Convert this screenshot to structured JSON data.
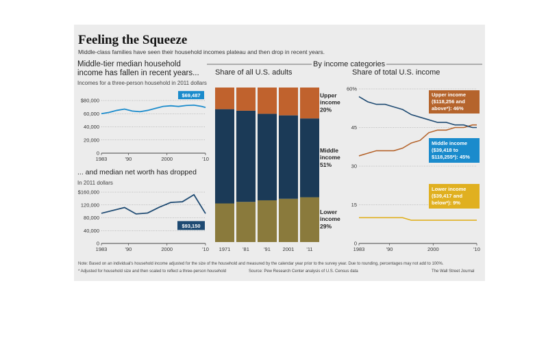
{
  "title": "Feeling the Squeeze",
  "subtitle": "Middle-class families have seen their household incomes plateau and then drop in recent years.",
  "section_label": "By income categories",
  "charts": {
    "income": {
      "heading": "Middle-tier median household income has fallen in recent years...",
      "note": "Incomes for a three-person household in 2011 dollars",
      "y_labels": [
        "$80,000",
        "60,000",
        "40,000",
        "20,000",
        "0"
      ],
      "x_labels": [
        "1983",
        "'90",
        "2000",
        "'10"
      ],
      "callout": "$69,487"
    },
    "networth": {
      "heading": "... and median net worth has dropped",
      "note": "In 2011 dollars",
      "y_labels": [
        "$160,000",
        "120,000",
        "80,000",
        "40,000",
        "0"
      ],
      "x_labels": [
        "1983",
        "'90",
        "2000",
        "'10"
      ],
      "callout": "$93,150"
    },
    "adults": {
      "heading": "Share of all U.S. adults",
      "x_labels": [
        "1971",
        "'81",
        "'91",
        "2001",
        "'11"
      ],
      "segments": [
        {
          "label1": "Upper",
          "label2": "income",
          "value": "20%"
        },
        {
          "label1": "Middle",
          "label2": "income",
          "value": "51%"
        },
        {
          "label1": "Lower",
          "label2": "income",
          "value": "29%"
        }
      ]
    },
    "share": {
      "heading": "Share of total U.S. income",
      "y_labels": [
        "60%",
        "45",
        "30",
        "15",
        "0"
      ],
      "x_labels": [
        "1983",
        "'90",
        "2000",
        "'10"
      ],
      "upper_label": [
        "Upper income",
        "($118,256 and",
        "above*): 46%"
      ],
      "middle_label": [
        "Middle income",
        "($39,418 to",
        "$118,255*): 45%"
      ],
      "lower_label": [
        "Lower income",
        "($39,417 and",
        "below*): 9%"
      ]
    }
  },
  "footnote1": "Note: Based on an individual's household income adjusted for the size of the household and measured by the calendar year prior to the survey year. Due to rounding, percentages may not add to 100%.",
  "footnote2": "* Adjusted for household size and then scaled to reflect a three-person household",
  "source": "Source: Pew Research Center analysis of U.S. Census data",
  "credit": "The Wall Street Journal",
  "colors": {
    "upper": "#c0622d",
    "middle": "#1b3a57",
    "lower": "#8a7a3c",
    "blue_line": "#1a8bcc",
    "navy_line": "#1e4a72",
    "gold_line": "#e0b020",
    "brown_line": "#b5642c"
  },
  "chart_data": [
    {
      "type": "line",
      "title": "Middle-tier median household income has fallen in recent years...",
      "ylabel": "Incomes for a three-person household in 2011 dollars",
      "ylim": [
        0,
        80000
      ],
      "x": [
        1983,
        1985,
        1987,
        1989,
        1991,
        1993,
        1995,
        1997,
        1999,
        2001,
        2003,
        2005,
        2007,
        2009,
        2010
      ],
      "series": [
        {
          "values": [
            60000,
            62000,
            65000,
            67000,
            64000,
            63000,
            65000,
            68000,
            71000,
            72000,
            71000,
            72500,
            73000,
            71000,
            69487
          ]
        }
      ],
      "annotations": [
        "$69,487"
      ]
    },
    {
      "type": "line",
      "title": "... and median net worth has dropped",
      "ylabel": "In 2011 dollars",
      "ylim": [
        0,
        160000
      ],
      "x": [
        1983,
        1989,
        1992,
        1995,
        1998,
        2001,
        2004,
        2007,
        2010
      ],
      "series": [
        {
          "values": [
            94000,
            112000,
            92000,
            95000,
            113000,
            128000,
            130000,
            152000,
            93150
          ]
        }
      ],
      "annotations": [
        "$93,150"
      ]
    },
    {
      "type": "bar",
      "title": "Share of all U.S. adults",
      "categories": [
        "1971",
        "'81",
        "'91",
        "2001",
        "'11"
      ],
      "series": [
        {
          "name": "Lower income",
          "values": [
            25,
            26,
            27,
            28,
            29
          ]
        },
        {
          "name": "Middle income",
          "values": [
            61,
            59,
            56,
            54,
            51
          ]
        },
        {
          "name": "Upper income",
          "values": [
            14,
            15,
            17,
            18,
            20
          ]
        }
      ],
      "ylim": [
        0,
        100
      ]
    },
    {
      "type": "line",
      "title": "Share of total U.S. income",
      "ylim": [
        0,
        60
      ],
      "x": [
        1983,
        1985,
        1987,
        1989,
        1991,
        1993,
        1995,
        1997,
        1999,
        2001,
        2003,
        2005,
        2007,
        2009,
        2010
      ],
      "series": [
        {
          "name": "Upper income",
          "values": [
            34,
            35,
            36,
            36,
            36,
            37,
            39,
            40,
            43,
            44,
            44,
            45,
            45,
            46,
            46
          ]
        },
        {
          "name": "Middle income",
          "values": [
            57,
            55,
            54,
            54,
            53,
            52,
            50,
            49,
            48,
            47,
            47,
            46,
            46,
            45,
            45
          ]
        },
        {
          "name": "Lower income",
          "values": [
            10,
            10,
            10,
            10,
            10,
            10,
            9,
            9,
            9,
            9,
            9,
            9,
            9,
            9,
            9
          ]
        }
      ]
    }
  ]
}
